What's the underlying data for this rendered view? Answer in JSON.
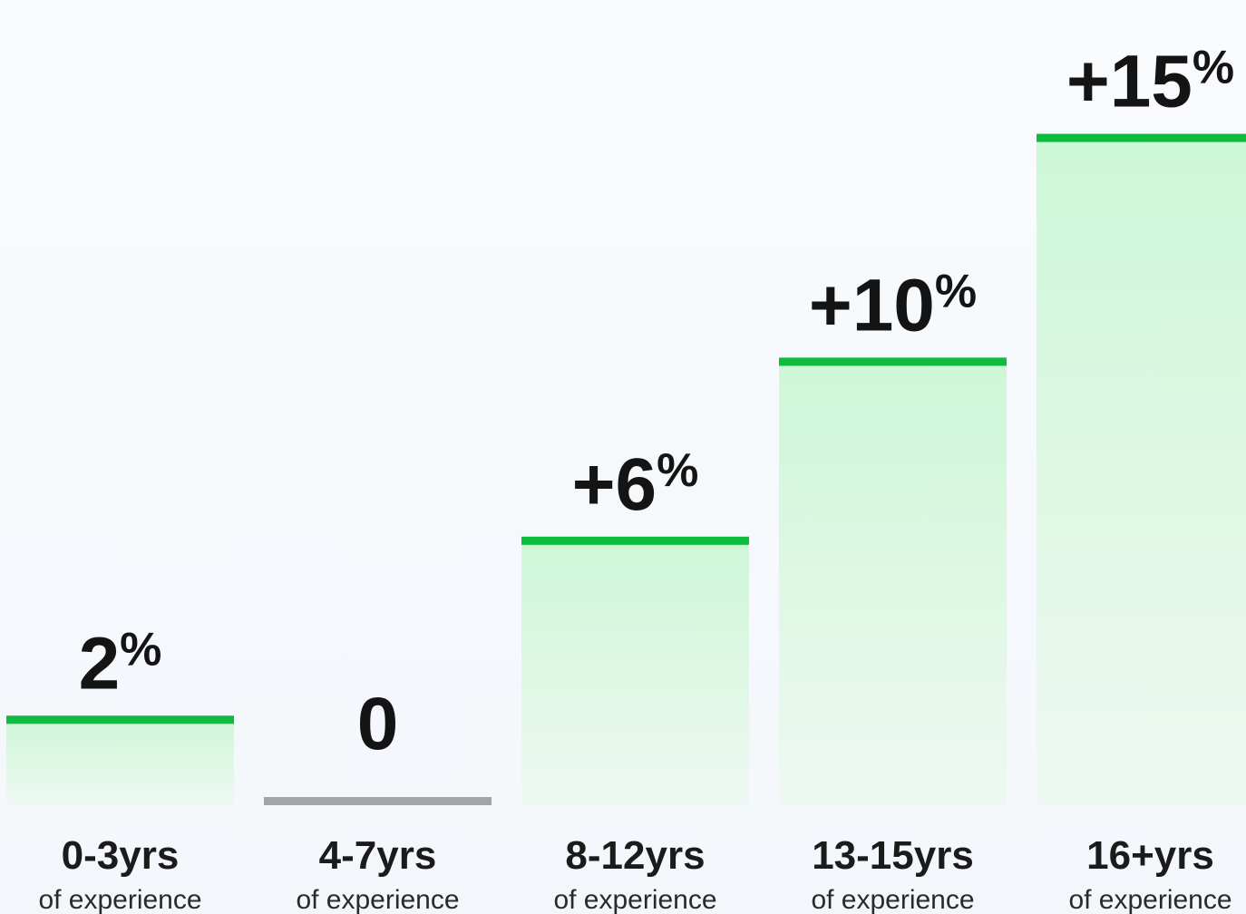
{
  "chart_data": {
    "type": "bar",
    "categories": [
      "0-3yrs",
      "4-7yrs",
      "8-12yrs",
      "13-15yrs",
      "16+yrs"
    ],
    "subtitle_each": "of experience",
    "values": [
      2,
      0,
      6,
      10,
      15
    ],
    "value_labels": [
      {
        "main": "2",
        "suffix": "%"
      },
      {
        "main": "0",
        "suffix": ""
      },
      {
        "main": "+6",
        "suffix": "%"
      },
      {
        "main": "+10",
        "suffix": "%"
      },
      {
        "main": "+15",
        "suffix": "%"
      }
    ],
    "ylim": [
      0,
      15.6
    ],
    "grid": false,
    "colors": {
      "positive_line": "#0dbb3e",
      "zero_line": "#a4a4a4",
      "fill_top": "#cdf7d6",
      "fill_bottom": "#eef8f2",
      "text": "#141414"
    }
  }
}
